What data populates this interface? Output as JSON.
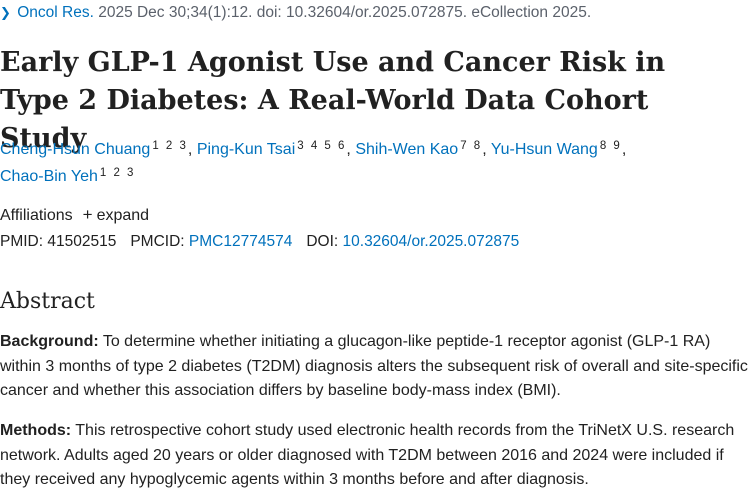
{
  "citation": {
    "chevron": "chevron-right-icon",
    "journal": "Oncol Res.",
    "details": "2025 Dec 30;34(1):12. doi: 10.32604/or.2025.072875. eCollection 2025."
  },
  "title": "Early GLP-1 Agonist Use and Cancer Risk in Type 2 Diabetes: A Real-World Data Cohort Study",
  "authors": [
    {
      "name": "Cheng-Hsun Chuang",
      "affil": "1 2 3",
      "sep": ","
    },
    {
      "name": "Ping-Kun Tsai",
      "affil": "3 4 5 6",
      "sep": ","
    },
    {
      "name": "Shih-Wen Kao",
      "affil": "7 8",
      "sep": ","
    },
    {
      "name": "Yu-Hsun Wang",
      "affil": "8 9",
      "sep": ","
    },
    {
      "name": "Chao-Bin Yeh",
      "affil": "1 2 3",
      "sep": ""
    }
  ],
  "affiliations": {
    "label": "Affiliations",
    "plus_icon": "plus-icon",
    "expand": "expand"
  },
  "ids": {
    "pmid_label": "PMID:",
    "pmid": "41502515",
    "pmcid_label": "PMCID:",
    "pmcid": "PMC12774574",
    "doi_label": "DOI:",
    "doi": "10.32604/or.2025.072875"
  },
  "abstract": {
    "heading": "Abstract",
    "background_label": "Background:",
    "background_text": "To determine whether initiating a glucagon-like peptide-1 receptor agonist (GLP-1 RA) within 3 months of type 2 diabetes (T2DM) diagnosis alters the subsequent risk of overall and site-specific cancer and whether this association differs by baseline body-mass index (BMI).",
    "methods_label": "Methods:",
    "methods_text": "This retrospective cohort study used electronic health records from the TriNetX U.S. research network. Adults aged 20 years or older diagnosed with T2DM between 2016 and 2024 were included if they received any hypoglycemic agents within 3 months before and after diagnosis."
  }
}
